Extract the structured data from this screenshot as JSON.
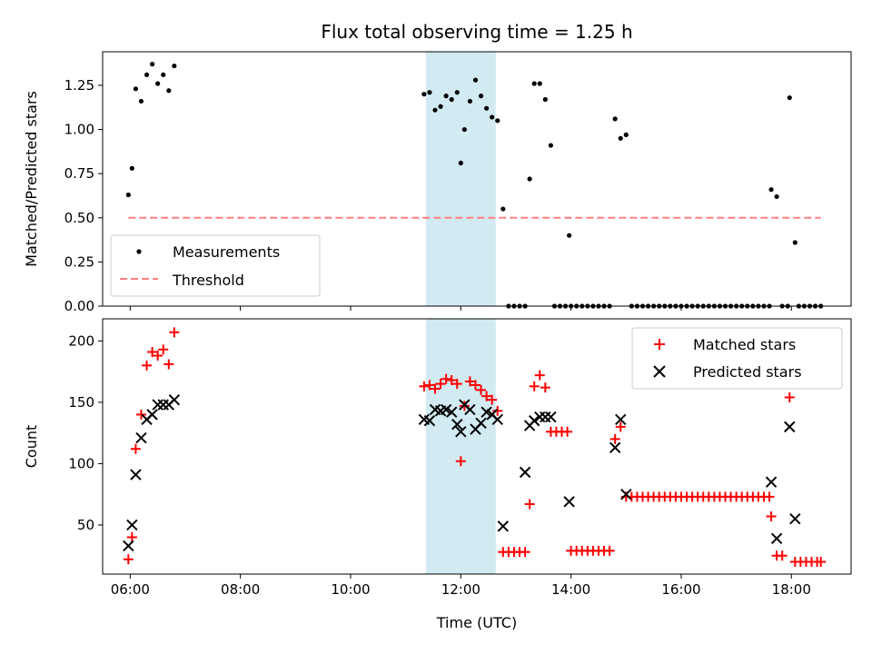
{
  "title": "Flux total observing time = 1.25 h",
  "colors": {
    "measurement": "#000000",
    "threshold": "#ff8080",
    "matched": "#ff0000",
    "predicted": "#000000",
    "highlight": "#add8e6"
  },
  "chart_data": [
    {
      "type": "scatter",
      "ylabel": "Matched/Predicted stars",
      "xlabel": "",
      "xlim": [
        "05:30",
        "19:05"
      ],
      "ylim": [
        0,
        1.44
      ],
      "xticks": [
        "06:00",
        "08:00",
        "10:00",
        "12:00",
        "14:00",
        "16:00",
        "18:00"
      ],
      "yticks": [
        "0.00",
        "0.25",
        "0.50",
        "0.75",
        "1.00",
        "1.25"
      ],
      "grid": false,
      "legend": "lower-left",
      "highlight_span": [
        "11:22",
        "12:38"
      ],
      "series": [
        {
          "name": "Measurements",
          "marker": "dot",
          "points": [
            [
              "05:58",
              0.63
            ],
            [
              "06:02",
              0.78
            ],
            [
              "06:06",
              1.23
            ],
            [
              "06:12",
              1.16
            ],
            [
              "06:18",
              1.31
            ],
            [
              "06:24",
              1.37
            ],
            [
              "06:30",
              1.26
            ],
            [
              "06:36",
              1.31
            ],
            [
              "06:42",
              1.22
            ],
            [
              "06:48",
              1.36
            ],
            [
              "11:20",
              1.2
            ],
            [
              "11:26",
              1.21
            ],
            [
              "11:32",
              1.11
            ],
            [
              "11:38",
              1.13
            ],
            [
              "11:44",
              1.19
            ],
            [
              "11:50",
              1.17
            ],
            [
              "11:56",
              1.21
            ],
            [
              "12:00",
              0.81
            ],
            [
              "12:04",
              1.0
            ],
            [
              "12:10",
              1.16
            ],
            [
              "12:16",
              1.28
            ],
            [
              "12:22",
              1.19
            ],
            [
              "12:28",
              1.12
            ],
            [
              "12:34",
              1.07
            ],
            [
              "12:40",
              1.05
            ],
            [
              "12:46",
              0.55
            ],
            [
              "12:52",
              0
            ],
            [
              "12:58",
              0
            ],
            [
              "13:04",
              0
            ],
            [
              "13:10",
              0
            ],
            [
              "13:15",
              0.72
            ],
            [
              "13:20",
              1.26
            ],
            [
              "13:26",
              1.26
            ],
            [
              "13:32",
              1.17
            ],
            [
              "13:38",
              0.91
            ],
            [
              "13:42",
              0
            ],
            [
              "13:48",
              0
            ],
            [
              "13:54",
              0
            ],
            [
              "14:00",
              0
            ],
            [
              "13:58",
              0.4
            ],
            [
              "14:06",
              0
            ],
            [
              "14:12",
              0
            ],
            [
              "14:18",
              0
            ],
            [
              "14:24",
              0
            ],
            [
              "14:30",
              0
            ],
            [
              "14:36",
              0
            ],
            [
              "14:42",
              0
            ],
            [
              "14:48",
              1.06
            ],
            [
              "14:54",
              0.95
            ],
            [
              "15:00",
              0.97
            ],
            [
              "15:06",
              0
            ],
            [
              "15:12",
              0
            ],
            [
              "15:18",
              0
            ],
            [
              "15:24",
              0
            ],
            [
              "15:30",
              0
            ],
            [
              "15:36",
              0
            ],
            [
              "15:42",
              0
            ],
            [
              "15:48",
              0
            ],
            [
              "15:54",
              0
            ],
            [
              "16:00",
              0
            ],
            [
              "16:06",
              0
            ],
            [
              "16:12",
              0
            ],
            [
              "16:18",
              0
            ],
            [
              "16:24",
              0
            ],
            [
              "16:30",
              0
            ],
            [
              "16:36",
              0
            ],
            [
              "16:42",
              0
            ],
            [
              "16:48",
              0
            ],
            [
              "16:54",
              0
            ],
            [
              "17:00",
              0
            ],
            [
              "17:06",
              0
            ],
            [
              "17:12",
              0
            ],
            [
              "17:18",
              0
            ],
            [
              "17:24",
              0
            ],
            [
              "17:30",
              0
            ],
            [
              "17:36",
              0
            ],
            [
              "17:38",
              0.66
            ],
            [
              "17:44",
              0.62
            ],
            [
              "17:50",
              0
            ],
            [
              "17:56",
              0
            ],
            [
              "17:58",
              1.18
            ],
            [
              "18:04",
              0.36
            ],
            [
              "18:08",
              0
            ],
            [
              "18:14",
              0
            ],
            [
              "18:20",
              0
            ],
            [
              "18:26",
              0
            ],
            [
              "18:32",
              0
            ]
          ]
        },
        {
          "name": "Threshold",
          "marker": "dashed-line",
          "points": [
            [
              "05:58",
              0.5
            ],
            [
              "18:32",
              0.5
            ]
          ]
        }
      ]
    },
    {
      "type": "scatter",
      "ylabel": "Count",
      "xlabel": "Time (UTC)",
      "xlim": [
        "05:30",
        "19:05"
      ],
      "ylim": [
        10,
        218
      ],
      "xticks": [
        "06:00",
        "08:00",
        "10:00",
        "12:00",
        "14:00",
        "16:00",
        "18:00"
      ],
      "yticks": [
        "50",
        "100",
        "150",
        "200"
      ],
      "grid": false,
      "legend": "upper-right",
      "highlight_span": [
        "11:22",
        "12:38"
      ],
      "series": [
        {
          "name": "Matched stars",
          "marker": "plus",
          "points": [
            [
              "05:58",
              22
            ],
            [
              "06:02",
              40
            ],
            [
              "06:06",
              112
            ],
            [
              "06:12",
              140
            ],
            [
              "06:18",
              180
            ],
            [
              "06:24",
              191
            ],
            [
              "06:30",
              188
            ],
            [
              "06:36",
              193
            ],
            [
              "06:42",
              181
            ],
            [
              "06:48",
              207
            ],
            [
              "11:20",
              163
            ],
            [
              "11:26",
              164
            ],
            [
              "11:32",
              161
            ],
            [
              "11:38",
              165
            ],
            [
              "11:44",
              169
            ],
            [
              "11:50",
              168
            ],
            [
              "11:56",
              165
            ],
            [
              "12:00",
              102
            ],
            [
              "12:04",
              147
            ],
            [
              "12:10",
              167
            ],
            [
              "12:16",
              164
            ],
            [
              "12:22",
              160
            ],
            [
              "12:28",
              155
            ],
            [
              "12:34",
              152
            ],
            [
              "12:40",
              143
            ],
            [
              "12:46",
              28
            ],
            [
              "12:52",
              28
            ],
            [
              "12:58",
              28
            ],
            [
              "13:04",
              28
            ],
            [
              "13:10",
              28
            ],
            [
              "13:15",
              67
            ],
            [
              "13:20",
              163
            ],
            [
              "13:26",
              172
            ],
            [
              "13:32",
              162
            ],
            [
              "13:38",
              126
            ],
            [
              "13:44",
              126
            ],
            [
              "13:50",
              126
            ],
            [
              "13:56",
              126
            ],
            [
              "14:00",
              29
            ],
            [
              "14:06",
              29
            ],
            [
              "14:12",
              29
            ],
            [
              "14:18",
              29
            ],
            [
              "14:24",
              29
            ],
            [
              "14:30",
              29
            ],
            [
              "14:36",
              29
            ],
            [
              "14:42",
              29
            ],
            [
              "14:48",
              120
            ],
            [
              "14:54",
              130
            ],
            [
              "15:00",
              73
            ],
            [
              "15:06",
              73
            ],
            [
              "15:12",
              73
            ],
            [
              "15:18",
              73
            ],
            [
              "15:24",
              73
            ],
            [
              "15:30",
              73
            ],
            [
              "15:36",
              73
            ],
            [
              "15:42",
              73
            ],
            [
              "15:48",
              73
            ],
            [
              "15:54",
              73
            ],
            [
              "16:00",
              73
            ],
            [
              "16:06",
              73
            ],
            [
              "16:12",
              73
            ],
            [
              "16:18",
              73
            ],
            [
              "16:24",
              73
            ],
            [
              "16:30",
              73
            ],
            [
              "16:36",
              73
            ],
            [
              "16:42",
              73
            ],
            [
              "16:48",
              73
            ],
            [
              "16:54",
              73
            ],
            [
              "17:00",
              73
            ],
            [
              "17:06",
              73
            ],
            [
              "17:12",
              73
            ],
            [
              "17:18",
              73
            ],
            [
              "17:24",
              73
            ],
            [
              "17:30",
              73
            ],
            [
              "17:36",
              73
            ],
            [
              "17:38",
              57
            ],
            [
              "17:44",
              25
            ],
            [
              "17:50",
              25
            ],
            [
              "17:58",
              154
            ],
            [
              "18:04",
              20
            ],
            [
              "18:10",
              20
            ],
            [
              "18:16",
              20
            ],
            [
              "18:22",
              20
            ],
            [
              "18:28",
              20
            ],
            [
              "18:32",
              20
            ]
          ]
        },
        {
          "name": "Predicted stars",
          "marker": "x",
          "points": [
            [
              "05:58",
              33
            ],
            [
              "06:02",
              50
            ],
            [
              "06:06",
              91
            ],
            [
              "06:12",
              121
            ],
            [
              "06:18",
              136
            ],
            [
              "06:24",
              140
            ],
            [
              "06:30",
              148
            ],
            [
              "06:36",
              148
            ],
            [
              "06:42",
              148
            ],
            [
              "06:48",
              152
            ],
            [
              "11:20",
              136
            ],
            [
              "11:26",
              135
            ],
            [
              "11:32",
              144
            ],
            [
              "11:38",
              143
            ],
            [
              "11:44",
              144
            ],
            [
              "11:50",
              142
            ],
            [
              "11:56",
              132
            ],
            [
              "12:00",
              126
            ],
            [
              "12:04",
              148
            ],
            [
              "12:10",
              144
            ],
            [
              "12:16",
              128
            ],
            [
              "12:22",
              133
            ],
            [
              "12:28",
              142
            ],
            [
              "12:34",
              140
            ],
            [
              "12:40",
              136
            ],
            [
              "12:46",
              49
            ],
            [
              "13:10",
              93
            ],
            [
              "13:15",
              131
            ],
            [
              "13:20",
              135
            ],
            [
              "13:26",
              138
            ],
            [
              "13:32",
              138
            ],
            [
              "13:38",
              138
            ],
            [
              "13:58",
              69
            ],
            [
              "14:48",
              113
            ],
            [
              "14:54",
              136
            ],
            [
              "15:00",
              75
            ],
            [
              "17:38",
              85
            ],
            [
              "17:44",
              39
            ],
            [
              "17:58",
              130
            ],
            [
              "18:04",
              55
            ]
          ]
        }
      ]
    }
  ]
}
